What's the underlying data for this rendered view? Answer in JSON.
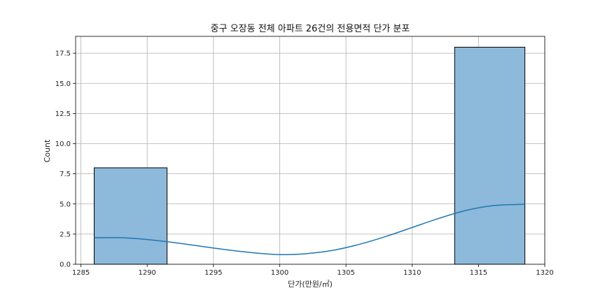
{
  "chart_data": {
    "type": "bar",
    "title": "중구 오장동 전체 아파트 26건의 전용면적 단가 분포",
    "xlabel": "단가(만원/㎡)",
    "ylabel": "Count",
    "xlim": [
      1284.6,
      1320.0
    ],
    "ylim": [
      0,
      18.9
    ],
    "xticks": [
      1285,
      1290,
      1295,
      1300,
      1305,
      1310,
      1315,
      1320
    ],
    "yticks": [
      0.0,
      2.5,
      5.0,
      7.5,
      10.0,
      12.5,
      15.0,
      17.5
    ],
    "xtick_labels": [
      "1285",
      "1290",
      "1295",
      "1300",
      "1305",
      "1310",
      "1315",
      "1320"
    ],
    "ytick_labels": [
      "0.0",
      "2.5",
      "5.0",
      "7.5",
      "10.0",
      "12.5",
      "15.0",
      "17.5"
    ],
    "grid": true,
    "bins": [
      {
        "x0": 1286.0,
        "x1": 1291.5,
        "count": 8
      },
      {
        "x0": 1313.2,
        "x1": 1318.5,
        "count": 18
      }
    ],
    "kde": {
      "x": [
        1286.0,
        1288.0,
        1290.0,
        1292.0,
        1294.0,
        1296.0,
        1298.0,
        1300.0,
        1302.0,
        1304.0,
        1306.0,
        1308.0,
        1310.0,
        1312.0,
        1314.0,
        1316.0,
        1318.5
      ],
      "y": [
        2.2,
        2.2,
        2.05,
        1.8,
        1.5,
        1.2,
        0.95,
        0.8,
        0.88,
        1.15,
        1.65,
        2.3,
        3.05,
        3.8,
        4.45,
        4.85,
        4.98
      ]
    },
    "colors": {
      "bar_fill": "#8db9da",
      "bar_edge": "#000000",
      "kde_line": "#1f77b4",
      "grid": "#b0b0b0"
    }
  }
}
